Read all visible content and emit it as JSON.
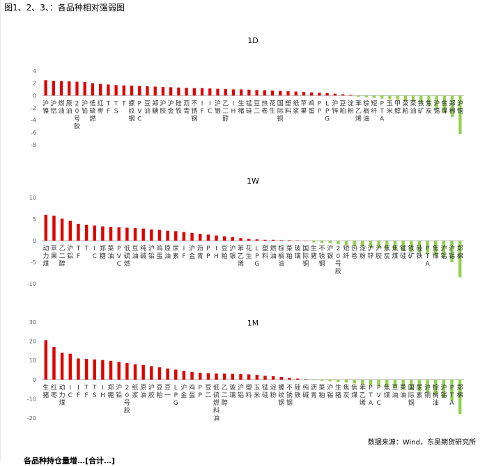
{
  "figure_title": "图1、2、3、：各品种相对强弱图",
  "source": "数据来源：Wind，东吴期货研究所",
  "footer_text": "各品种持仓量增…[合计…]",
  "colors": {
    "up": "#e00000",
    "down": "#92d050",
    "axis": "#bfbfbf",
    "text": "#333333"
  },
  "chart_data": [
    {
      "type": "bar",
      "title": "1D",
      "ylim": [
        -8,
        4
      ],
      "yticks": [
        4,
        2,
        0,
        -2,
        -4,
        -6,
        -8
      ],
      "categories": [
        "沪镍",
        "沪铝",
        "燃油",
        "原油",
        "20号胶",
        "沪铅",
        "低硫燃",
        "红枣",
        "TF",
        "TS",
        "T",
        "螺纹钢",
        "PVC",
        "豆油",
        "郑糖",
        "沪胶",
        "沪金",
        "硅铁",
        "沥青",
        "不锈钢",
        "IF",
        "IC",
        "沪银",
        "乙二醇",
        "IH",
        "生猪",
        "锰硅",
        "豆二",
        "热卷",
        "花生",
        "国际铜",
        "塑料",
        "纸浆",
        "苹果",
        "鸡蛋",
        "PP",
        "LPG",
        "沪锌",
        "豆粕",
        "淀粉",
        "苯乙烯",
        "棕榈油",
        "短纤",
        "PTA",
        "玉米",
        "甲醇",
        "菜粕",
        "菜油",
        "铁矿",
        "焦炭",
        "沪锡",
        "焦煤",
        "郑棉",
        "沪铜"
      ],
      "values": [
        2.5,
        2.4,
        2.35,
        2.3,
        2.25,
        2.2,
        2.0,
        1.9,
        1.8,
        1.7,
        1.65,
        1.6,
        1.55,
        1.5,
        1.45,
        1.4,
        1.35,
        1.3,
        1.25,
        1.2,
        1.2,
        1.15,
        1.1,
        1.05,
        1.0,
        1.0,
        0.95,
        0.9,
        0.85,
        0.8,
        0.75,
        0.7,
        0.65,
        0.6,
        0.5,
        0.45,
        0.4,
        0.3,
        0.2,
        0.1,
        -0.2,
        -0.3,
        -0.4,
        -0.5,
        -0.6,
        -0.7,
        -0.8,
        -1.0,
        -1.3,
        -1.8,
        -2.3,
        -2.8,
        -3.5,
        -6.3
      ]
    },
    {
      "type": "bar",
      "title": "1W",
      "ylim": [
        -10,
        10
      ],
      "yticks": [
        10,
        5,
        0,
        -5,
        -10
      ],
      "categories": [
        "动力煤",
        "苹果",
        "乙二醇",
        "沪铅",
        "TF",
        "T",
        "IC",
        "郑糖",
        "菜油",
        "PVC",
        "低硫燃",
        "豆油",
        "纯碱",
        "沪铅",
        "鸡蛋",
        "原油",
        "尿素",
        "IF",
        "沪金",
        "沥青",
        "PP",
        "IH",
        "豆粕",
        "沪银",
        "苯乙烯",
        "花生",
        "LPG",
        "塑料",
        "燃油",
        "棕榈油",
        "菜粕",
        "玻璃",
        "国际铜",
        "生猪",
        "不锈钢",
        "沪银",
        "20号胶",
        "短纤",
        "热卷",
        "淀粉",
        "沪锌",
        "沪胶",
        "焦炭",
        "焦煤",
        "锰硅",
        "铁矿",
        "硅铁",
        "PTA",
        "焦煤",
        "沪铝",
        "沪锡",
        "郑棉"
      ],
      "values": [
        6.0,
        5.8,
        5.1,
        4.6,
        3.9,
        3.7,
        3.5,
        3.3,
        3.2,
        3.1,
        3.0,
        2.9,
        2.8,
        2.6,
        2.5,
        2.3,
        2.2,
        2.0,
        1.8,
        1.6,
        1.4,
        1.2,
        1.0,
        0.8,
        0.6,
        0.4,
        0.3,
        0.2,
        0.2,
        0.1,
        0.1,
        0.05,
        0.0,
        -0.4,
        -0.5,
        -0.6,
        -0.8,
        -1.0,
        -1.2,
        -1.4,
        -1.6,
        -1.8,
        -2.0,
        -2.2,
        -2.4,
        -2.6,
        -2.8,
        -3.0,
        -3.5,
        -4.0,
        -5.0,
        -8.5
      ]
    },
    {
      "type": "bar",
      "title": "1M",
      "ylim": [
        -20,
        30
      ],
      "yticks": [
        30,
        20,
        10,
        0,
        -10,
        -20
      ],
      "categories": [
        "生猪",
        "红枣",
        "动力煤",
        "IC",
        "IF",
        "TF",
        "TS",
        "IH",
        "郑糖",
        "沪铅",
        "20号胶",
        "纸浆",
        "原油",
        "沪胶",
        "豆粕",
        "豆一",
        "LPG",
        "沪金",
        "鸡蛋",
        "PP",
        "豆二",
        "低硫燃料油",
        "乙二醇",
        "玻璃",
        "沪铝",
        "塑料",
        "玉米",
        "锰硅",
        "淀粉",
        "螺纹钢",
        "不锈钢",
        "硅铁",
        "纯碱",
        "沥青",
        "菜粕",
        "沪锡",
        "生猪",
        "焦炭",
        "焦煤",
        "苯乙烯",
        "PTA",
        "PVC",
        "焦煤",
        "豆油",
        "菜油",
        "国际铜",
        "尿素",
        "沪铜",
        "棕榈油",
        "沪锡",
        "PTA",
        "郑棉"
      ],
      "values": [
        20.5,
        17.0,
        14.0,
        13.5,
        11.0,
        10.8,
        10.5,
        10.2,
        9.8,
        9.2,
        8.6,
        8.0,
        7.6,
        7.0,
        6.4,
        5.8,
        5.2,
        4.6,
        4.0,
        3.6,
        3.4,
        3.2,
        3.1,
        3.0,
        2.9,
        2.7,
        2.5,
        2.0,
        1.8,
        1.4,
        0.9,
        0.5,
        0.2,
        -0.3,
        -0.6,
        -0.9,
        -1.2,
        -1.5,
        -2.0,
        -2.5,
        -3.0,
        -3.5,
        -4.0,
        -4.5,
        -5.0,
        -5.5,
        -6.0,
        -7.0,
        -8.0,
        -9.5,
        -11.0,
        -18.0
      ]
    }
  ]
}
